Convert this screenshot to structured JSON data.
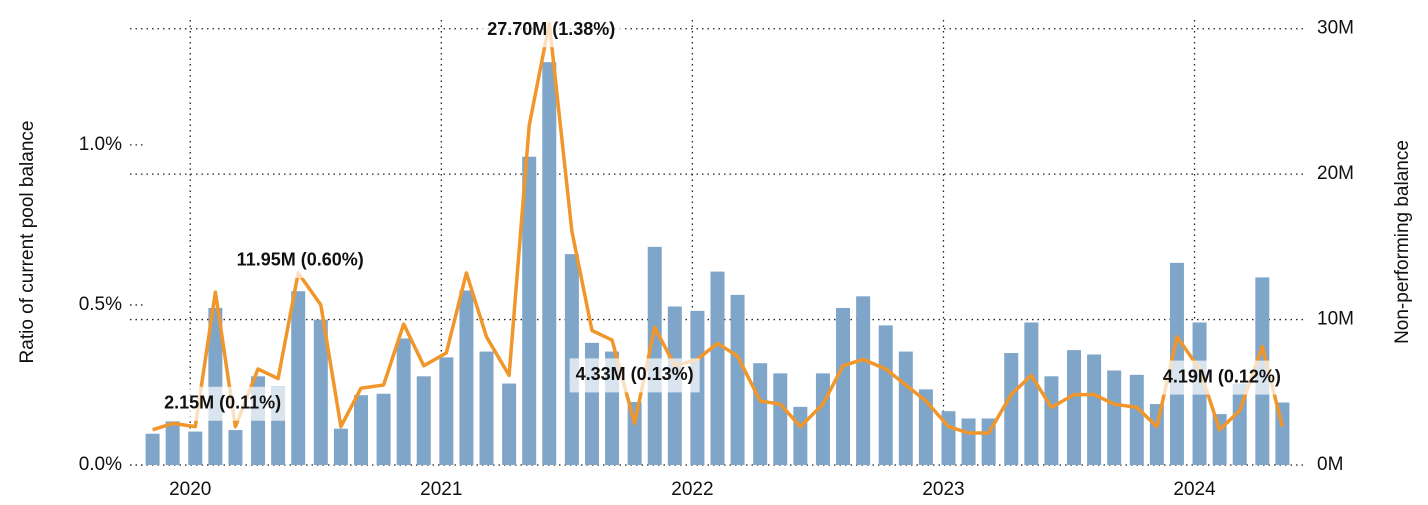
{
  "chart_data": {
    "type": "combo",
    "y_label": "Ratio of current pool balance",
    "y2_label": "Non-performing balance",
    "x": [
      2019.85,
      2019.93,
      2020.02,
      2020.1,
      2020.18,
      2020.27,
      2020.35,
      2020.43,
      2020.52,
      2020.6,
      2020.68,
      2020.77,
      2020.85,
      2020.93,
      2021.02,
      2021.1,
      2021.18,
      2021.27,
      2021.35,
      2021.43,
      2021.52,
      2021.6,
      2021.68,
      2021.77,
      2021.85,
      2021.93,
      2022.02,
      2022.1,
      2022.18,
      2022.27,
      2022.35,
      2022.43,
      2022.52,
      2022.6,
      2022.68,
      2022.77,
      2022.85,
      2022.93,
      2023.02,
      2023.1,
      2023.18,
      2023.27,
      2023.35,
      2023.43,
      2023.52,
      2023.6,
      2023.68,
      2023.77,
      2023.85,
      2023.93,
      2024.02,
      2024.1,
      2024.18,
      2024.27,
      2024.35
    ],
    "series": [
      {
        "type": "bar",
        "axis": "y2",
        "color": "#7fa6c9",
        "values": [
          2.15,
          3.0,
          2.3,
          10.8,
          2.4,
          6.1,
          5.4,
          11.95,
          10.0,
          2.5,
          4.8,
          4.9,
          8.7,
          6.1,
          7.4,
          12.0,
          7.8,
          5.6,
          21.2,
          27.7,
          14.5,
          8.4,
          7.8,
          4.33,
          15.0,
          10.9,
          10.6,
          13.3,
          11.7,
          7.0,
          6.3,
          4.0,
          6.3,
          10.8,
          11.6,
          9.6,
          7.8,
          5.2,
          3.7,
          3.2,
          3.2,
          7.7,
          9.8,
          6.1,
          7.9,
          7.6,
          6.5,
          6.2,
          4.19,
          13.9,
          9.8,
          3.5,
          5.6,
          12.9,
          4.3
        ]
      },
      {
        "type": "line",
        "color": "#f0962a",
        "values": [
          0.11,
          0.13,
          0.12,
          0.54,
          0.12,
          0.3,
          0.27,
          0.6,
          0.5,
          0.12,
          0.24,
          0.25,
          0.44,
          0.31,
          0.35,
          0.6,
          0.4,
          0.28,
          1.06,
          1.38,
          0.73,
          0.42,
          0.39,
          0.13,
          0.43,
          0.31,
          0.33,
          0.38,
          0.34,
          0.2,
          0.19,
          0.12,
          0.19,
          0.31,
          0.33,
          0.3,
          0.25,
          0.2,
          0.12,
          0.1,
          0.1,
          0.22,
          0.28,
          0.18,
          0.22,
          0.22,
          0.19,
          0.18,
          0.12,
          0.4,
          0.3,
          0.11,
          0.17,
          0.37,
          0.12
        ]
      }
    ],
    "annotations": [
      {
        "text": "2.15M (0.11%)",
        "x": 2019.85
      },
      {
        "text": "11.95M (0.60%)",
        "x": 2020.43
      },
      {
        "text": "27.70M (1.38%)",
        "x": 2021.43
      },
      {
        "text": "4.33M (0.13%)",
        "x": 2021.77
      },
      {
        "text": "4.19M (0.12%)",
        "x": 2023.85
      }
    ],
    "xlim": [
      2019.76,
      2024.44
    ],
    "xticks": [
      2020,
      2021,
      2022,
      2023,
      2024
    ],
    "ylim": [
      0,
      1.39
    ],
    "yticks": [
      {
        "value": 0,
        "label": "0.0%"
      },
      {
        "value": 0.5,
        "label": "0.5%"
      },
      {
        "value": 1.0,
        "label": "1.0%"
      }
    ],
    "y2lim": [
      0,
      30.6
    ],
    "y2ticks": [
      {
        "value": 0,
        "label": "0M"
      },
      {
        "value": 10,
        "label": "10M"
      },
      {
        "value": 20,
        "label": "20M"
      },
      {
        "value": 30,
        "label": "30M"
      }
    ],
    "grid": true
  }
}
